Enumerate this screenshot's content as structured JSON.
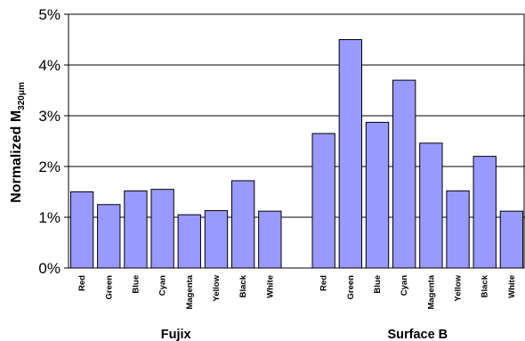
{
  "chart_data": {
    "type": "bar",
    "ylabel": {
      "main": "Normalized M",
      "subscript": "320μm"
    },
    "ylim": [
      0,
      5
    ],
    "yticks": [
      "0%",
      "1%",
      "2%",
      "3%",
      "4%",
      "5%"
    ],
    "grid": true,
    "bar_color": "#9999ff",
    "groups": [
      {
        "name": "Fujix",
        "categories": [
          "Red",
          "Green",
          "Blue",
          "Cyan",
          "Magenta",
          "Yellow",
          "Black",
          "White"
        ],
        "values": [
          1.5,
          1.25,
          1.52,
          1.55,
          1.05,
          1.13,
          1.72,
          1.12
        ]
      },
      {
        "name": "Surface B",
        "categories": [
          "Red",
          "Green",
          "Blue",
          "Cyan",
          "Magenta",
          "Yellow",
          "Black",
          "White"
        ],
        "values": [
          2.65,
          4.5,
          2.87,
          3.7,
          2.46,
          1.52,
          2.2,
          1.12
        ]
      }
    ]
  }
}
